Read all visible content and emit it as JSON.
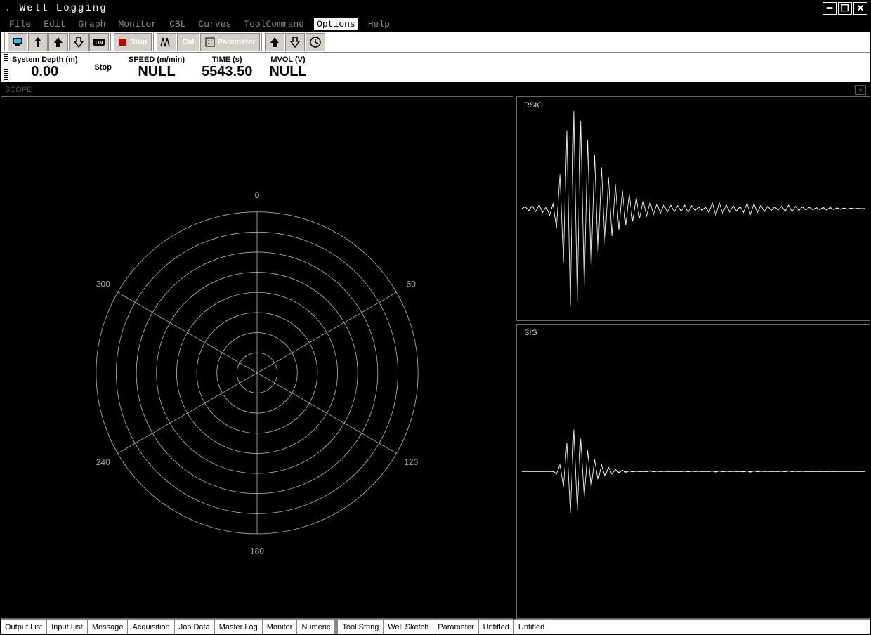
{
  "window": {
    "title": ". Well Logging"
  },
  "menubar": [
    "File",
    "Edit",
    "Graph",
    "Monitor",
    "CBL",
    "Curves",
    "ToolCommand",
    "Options",
    "Help"
  ],
  "menubar_active_index": 7,
  "toolbar": {
    "stop_label": "Stop",
    "cal_label": "Cal",
    "parameter_label": "Parameter"
  },
  "status": {
    "depth": {
      "label": "System Depth (m)",
      "value": "0.00"
    },
    "stop": {
      "label": "Stop",
      "value": ""
    },
    "speed": {
      "label": "SPEED (m/min)",
      "value": "NULL"
    },
    "time": {
      "label": "TIME (s)",
      "value": "5543.50"
    },
    "mvol": {
      "label": "MVOL (V)",
      "value": "NULL"
    }
  },
  "doc_header_left": "SCOPE",
  "panels": {
    "rsig": {
      "label": "RSIG",
      "line_color": "#ffffff",
      "bg_color": "#000000",
      "ylim": [
        -1,
        1
      ],
      "xlim": [
        0,
        100
      ],
      "samples": [
        0,
        0.02,
        -0.02,
        0.03,
        -0.03,
        0.04,
        -0.04,
        0.02,
        -0.07,
        0.05,
        -0.2,
        0.35,
        -0.55,
        0.8,
        -1.0,
        1.0,
        -0.95,
        0.9,
        -0.8,
        0.7,
        -0.62,
        0.55,
        -0.48,
        0.42,
        -0.37,
        0.32,
        -0.28,
        0.25,
        -0.22,
        0.19,
        -0.17,
        0.15,
        -0.13,
        0.115,
        -0.1,
        0.088,
        -0.077,
        0.068,
        -0.06,
        0.053,
        -0.047,
        0.041,
        -0.036,
        0.034,
        -0.032,
        0.03,
        -0.028,
        0.035,
        -0.04,
        0.03,
        -0.02,
        0.018,
        -0.017,
        0.016,
        -0.04,
        0.06,
        -0.07,
        0.06,
        -0.05,
        0.04,
        -0.035,
        0.03,
        -0.025,
        0.022,
        -0.04,
        0.055,
        -0.06,
        0.05,
        -0.04,
        0.035,
        -0.03,
        0.025,
        -0.02,
        0.018,
        -0.016,
        0.025,
        -0.03,
        0.035,
        -0.03,
        0.025,
        -0.02,
        0.018,
        -0.015,
        0.014,
        -0.012,
        0.01,
        -0.01,
        0.012,
        -0.014,
        0.012,
        -0.01,
        0.008,
        -0.007,
        0.006,
        -0.005,
        0.004,
        -0.003,
        0.002,
        -0.001,
        0
      ]
    },
    "sig": {
      "label": "SIG",
      "line_color": "#ffffff",
      "bg_color": "#000000",
      "ylim": [
        -1,
        1
      ],
      "xlim": [
        0,
        100
      ],
      "samples": [
        0,
        0,
        0,
        0,
        0,
        0,
        0,
        0,
        0,
        0,
        -0.02,
        0.05,
        -0.12,
        0.22,
        -0.32,
        0.32,
        -0.3,
        0.25,
        -0.2,
        0.16,
        -0.12,
        0.09,
        -0.07,
        0.05,
        -0.04,
        0.03,
        -0.02,
        0.015,
        -0.01,
        0.008,
        -0.006,
        0.004,
        -0.003,
        0.002,
        -0.001,
        0.0008,
        -0.002,
        0.004,
        -0.003,
        0.002,
        -0.001,
        0.001,
        -0.001,
        0.0008,
        -0.0006,
        0.0005,
        -0.001,
        0.002,
        -0.003,
        0.002,
        -0.001,
        0.001,
        -0.001,
        0.0008,
        -0.0006,
        0.003,
        -0.005,
        0.004,
        -0.003,
        0.002,
        -0.001,
        0.001,
        -0.001,
        0.0008,
        -0.003,
        0.004,
        -0.005,
        0.004,
        -0.003,
        0.002,
        -0.001,
        0.001,
        -0.001,
        0.0008,
        -0.0006,
        0.002,
        -0.003,
        0.003,
        -0.002,
        0.001,
        -0.001,
        0.001,
        -0.0008,
        0.0006,
        -0.0005,
        0.0004,
        -0.0006,
        0.0008,
        -0.001,
        0.0008,
        -0.0006,
        0.0004,
        -0.0003,
        0.0002,
        -0.0001,
        0,
        0,
        0,
        0,
        0
      ]
    },
    "polar": {
      "grid_color": "#aaaaaa",
      "bg_color": "#000000",
      "label_color": "#aaaaaa",
      "rings": 8,
      "spokes": [
        0,
        60,
        120,
        180,
        240,
        300
      ],
      "angle_labels": [
        "0",
        "60",
        "120",
        "180",
        "240",
        "300"
      ],
      "label_fontsize": 11
    }
  },
  "tabs": [
    "Output List",
    "Input List",
    "Message",
    "Acquisition",
    "Job Data",
    "Master Log",
    "Monitor",
    "Numeric",
    "Tool String",
    "Well Sketch",
    "Parameter",
    "Untitled",
    "Untitled"
  ],
  "tabs_group2_start": 8
}
